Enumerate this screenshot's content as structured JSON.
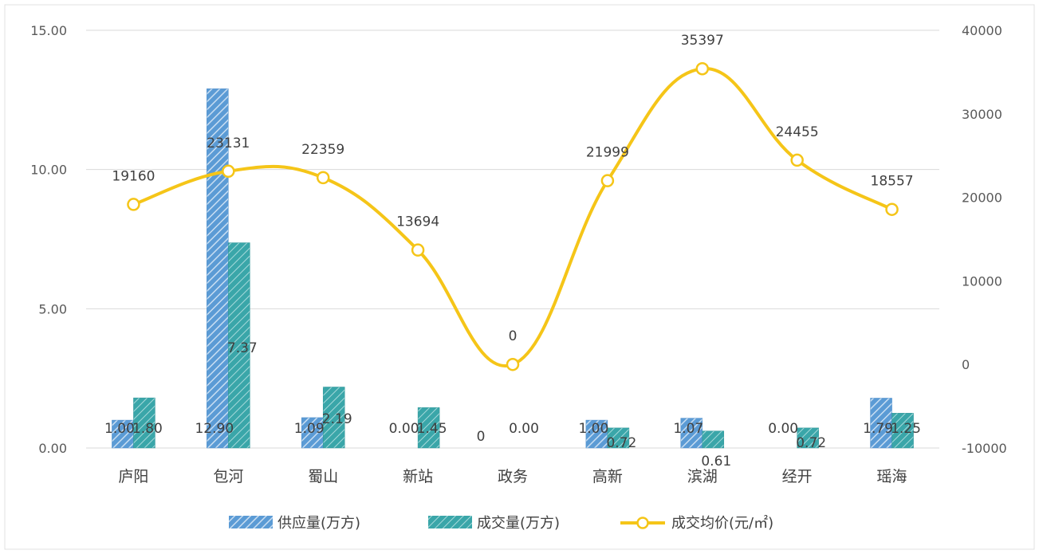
{
  "chart_data": {
    "type": "bar",
    "categories": [
      "庐阳",
      "包河",
      "蜀山",
      "新站",
      "政务",
      "高新",
      "滨湖",
      "经开",
      "瑶海"
    ],
    "series": [
      {
        "name": "供应量(万方)",
        "kind": "bar",
        "axis": "left",
        "values": [
          1.0,
          12.9,
          1.09,
          0.0,
          null,
          1.0,
          1.07,
          0.0,
          1.79
        ],
        "labels": [
          "1.00",
          "12.90",
          "1.09",
          "0.00",
          "0",
          "1.00",
          "1.07",
          "0.00",
          "1.79"
        ]
      },
      {
        "name": "成交量(万方)",
        "kind": "bar",
        "axis": "left",
        "values": [
          1.8,
          7.37,
          2.19,
          1.45,
          0.0,
          0.72,
          0.61,
          0.72,
          1.25
        ],
        "labels": [
          "1.80",
          "7.37",
          "2.19",
          "1.45",
          "0.00",
          "0.72",
          "0.61",
          "0.72",
          "1.25"
        ]
      },
      {
        "name": "成交均价(元/㎡)",
        "kind": "line",
        "axis": "right",
        "values": [
          19160,
          23131,
          22359,
          13694,
          0,
          21999,
          35397,
          24455,
          18557
        ],
        "labels": [
          "19160",
          "23131",
          "22359",
          "13694",
          "0",
          "21999",
          "35397",
          "24455",
          "18557"
        ]
      }
    ],
    "left_axis": {
      "ticks": [
        "0.00",
        "5.00",
        "10.00",
        "15.00"
      ],
      "ylim": [
        0,
        15
      ]
    },
    "right_axis": {
      "ticks": [
        "-10000",
        "0",
        "10000",
        "20000",
        "30000",
        "40000"
      ],
      "ylim": [
        -10000,
        40000
      ]
    },
    "grid": true,
    "legend_position": "bottom",
    "colors": {
      "supply": "#5b9bd5",
      "deal": "#3aa6a9",
      "price": "#f5c518",
      "grid": "#d9d9d9"
    }
  }
}
